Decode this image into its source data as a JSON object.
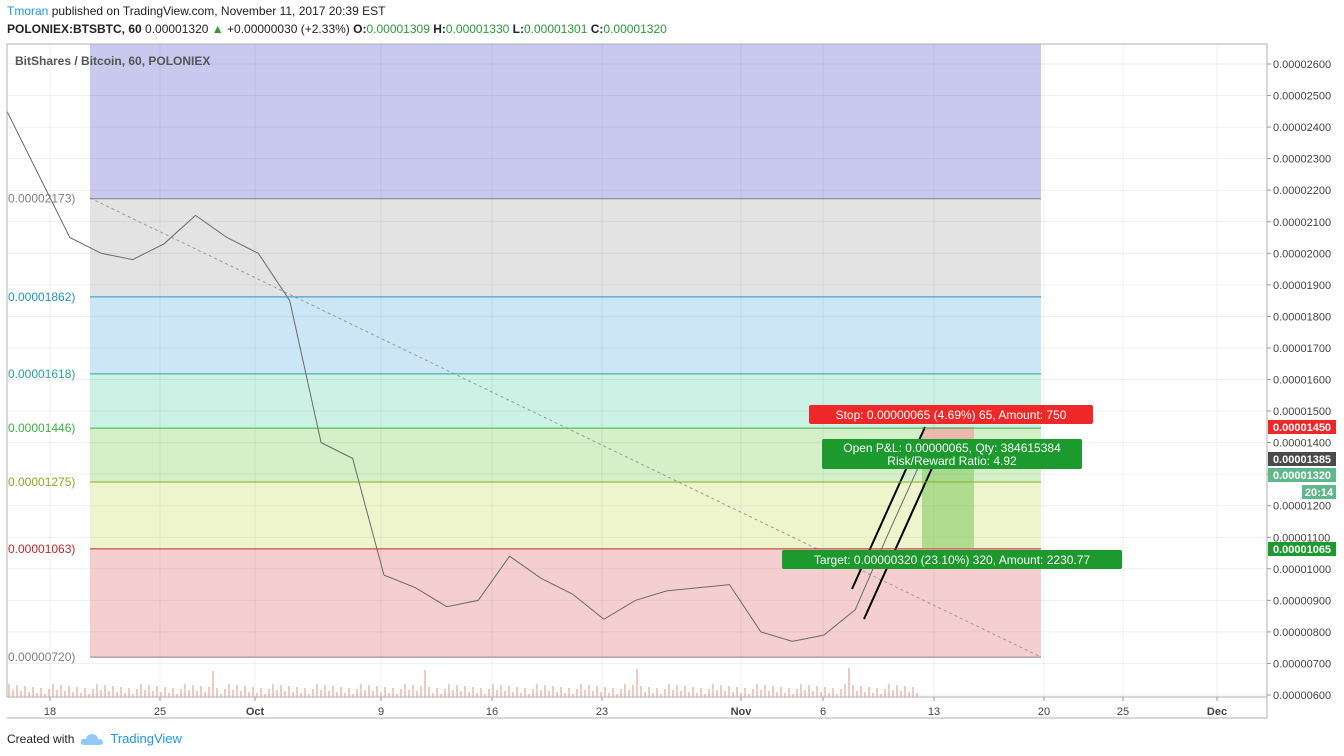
{
  "header": {
    "author": "Tmoran",
    "published_text": "published on TradingView.com, November 11, 2017 20:39 EST"
  },
  "quote": {
    "symbol": "POLONIEX:BTSBTC, 60",
    "price": "0.00001320",
    "change": "+0.00000030 (+2.33%)",
    "o_label": "O:",
    "o": "0.00001309",
    "h_label": "H:",
    "h": "0.00001330",
    "l_label": "L:",
    "l": "0.00001301",
    "c_label": "C:",
    "c": "0.00001320",
    "up_color": "#2a9a3a"
  },
  "footer": {
    "created_with": "Created with",
    "brand": "TradingView"
  },
  "chart_data": {
    "type": "line",
    "title": "BitShares / Bitcoin, 60, POLONIEX",
    "y_axis_ticks": [
      "0.00002600",
      "0.00002500",
      "0.00002400",
      "0.00002300",
      "0.00002200",
      "0.00002100",
      "0.00002000",
      "0.00001900",
      "0.00001800",
      "0.00001700",
      "0.00001600",
      "0.00001500",
      "0.00001400",
      "0.00001300",
      "0.00001200",
      "0.00001100",
      "0.00001000",
      "0.00000900",
      "0.00000800",
      "0.00000700",
      "0.00000600"
    ],
    "ylim": [
      5.8e-06,
      2.65e-05
    ],
    "x_axis_ticks": [
      "18",
      "25",
      "Oct",
      "9",
      "16",
      "23",
      "Nov",
      "6",
      "13",
      "20",
      "25",
      "Dec"
    ],
    "series": [
      {
        "x": [
          "Sep 15",
          "Sep 17",
          "Sep 19",
          "Sep 21",
          "Sep 23",
          "Sep 25",
          "Sep 27",
          "Sep 29",
          "Oct 1",
          "Oct 3",
          "Oct 5",
          "Oct 7",
          "Oct 9",
          "Oct 11",
          "Oct 13",
          "Oct 15",
          "Oct 17",
          "Oct 19",
          "Oct 21",
          "Oct 23",
          "Oct 25",
          "Oct 27",
          "Oct 29",
          "Oct 31",
          "Nov 2",
          "Nov 4",
          "Nov 6",
          "Nov 8",
          "Nov 10",
          "Nov 11"
        ],
        "values": [
          2.45e-05,
          2.25e-05,
          2.05e-05,
          2e-05,
          1.98e-05,
          2.03e-05,
          2.12e-05,
          2.05e-05,
          2e-05,
          1.85e-05,
          1.4e-05,
          1.35e-05,
          9.8e-06,
          9.4e-06,
          8.8e-06,
          9e-06,
          1.04e-05,
          9.7e-06,
          9.2e-06,
          8.4e-06,
          9e-06,
          9.3e-06,
          9.4e-06,
          9.5e-06,
          8e-06,
          7.7e-06,
          7.9e-06,
          8.7e-06,
          1.1e-05,
          1.32e-05
        ]
      }
    ],
    "fib_levels": [
      {
        "label": "0.00002173)",
        "value": 2.173e-05,
        "color": "#808080"
      },
      {
        "label": "0.00001862)",
        "value": 1.862e-05,
        "color": "#2196c8"
      },
      {
        "label": "0.00001618)",
        "value": 1.618e-05,
        "color": "#26a69a"
      },
      {
        "label": "0.00001446)",
        "value": 1.446e-05,
        "color": "#3cb043"
      },
      {
        "label": "0.00001275)",
        "value": 1.275e-05,
        "color": "#8bab22"
      },
      {
        "label": "0.00001063)",
        "value": 1.063e-05,
        "color": "#c0282d"
      },
      {
        "label": "0.00000720)",
        "value": 7.2e-06,
        "color": "#808080"
      }
    ],
    "price_tags": [
      {
        "text": "0.00001450",
        "color": "#ee2828"
      },
      {
        "text": "0.00001385",
        "color": "#4a4a4a"
      },
      {
        "text": "0.00001320",
        "color": "#5fb889"
      },
      {
        "text": "20:14",
        "color": "#5fb889"
      },
      {
        "text": "0.00001065",
        "color": "#1c9a2e"
      }
    ],
    "annotations": {
      "stop": "Stop: 0.00000065 (4.69%) 65, Amount: 750",
      "pnl1": "Open P&L: 0.00000065, Qty: 384615384",
      "pnl2": "Risk/Reward Ratio: 4.92",
      "target": "Target: 0.00000320 (23.10%) 320, Amount: 2230.77"
    }
  }
}
